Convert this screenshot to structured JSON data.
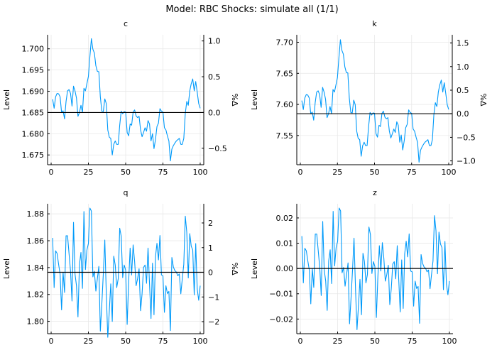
{
  "title": "Model: RBC       Shocks: simulate all  (1/1)",
  "colors": {
    "series": "#009AFA",
    "steady_state": "#000000",
    "grid": "#e8e8e8"
  },
  "chart_data": [
    {
      "type": "line",
      "title": "c",
      "ylabel": "Level",
      "y2label": "%Δ",
      "xlim": [
        -2.4,
        102.4
      ],
      "ylim": [
        1.6727,
        1.7033
      ],
      "steady_state": 1.685,
      "grid": true,
      "legend": "none",
      "xticks": [
        {
          "v": 0,
          "label": "0"
        },
        {
          "v": 25,
          "label": "25"
        },
        {
          "v": 50,
          "label": "50"
        },
        {
          "v": 75,
          "label": "75"
        },
        {
          "v": 100,
          "label": "100"
        }
      ],
      "yticks": [
        {
          "v": 1.675,
          "label": "1.675"
        },
        {
          "v": 1.68,
          "label": "1.680"
        },
        {
          "v": 1.685,
          "label": "1.685"
        },
        {
          "v": 1.69,
          "label": "1.690"
        },
        {
          "v": 1.695,
          "label": "1.695"
        },
        {
          "v": 1.7,
          "label": "1.700"
        }
      ],
      "y2ticks": [
        {
          "v": -0.5,
          "label": "−0.5"
        },
        {
          "v": 0,
          "label": "0.0"
        },
        {
          "v": 0.5,
          "label": "0.5"
        },
        {
          "v": 1.0,
          "label": "1.0"
        }
      ],
      "x_start": 1,
      "values": [
        1.6881,
        1.686,
        1.6887,
        1.6895,
        1.6894,
        1.6887,
        1.685,
        1.6854,
        1.6835,
        1.6876,
        1.6901,
        1.6904,
        1.6895,
        1.6865,
        1.6912,
        1.6901,
        1.6884,
        1.6841,
        1.685,
        1.6867,
        1.685,
        1.6907,
        1.6901,
        1.6918,
        1.6935,
        1.6982,
        1.7024,
        1.6999,
        1.699,
        1.696,
        1.6947,
        1.6946,
        1.6887,
        1.6853,
        1.6852,
        1.6882,
        1.6871,
        1.6809,
        1.6792,
        1.6789,
        1.675,
        1.6775,
        1.6783,
        1.6775,
        1.6775,
        1.682,
        1.6853,
        1.6847,
        1.6852,
        1.6851,
        1.6803,
        1.6795,
        1.6823,
        1.682,
        1.6851,
        1.6856,
        1.6842,
        1.6838,
        1.6841,
        1.6809,
        1.6793,
        1.6803,
        1.6814,
        1.6806,
        1.6831,
        1.6823,
        1.6783,
        1.68,
        1.6765,
        1.6786,
        1.6817,
        1.6825,
        1.6859,
        1.6853,
        1.6851,
        1.6814,
        1.6809,
        1.6795,
        1.6783,
        1.6736,
        1.6764,
        1.6772,
        1.6778,
        1.6783,
        1.6786,
        1.6789,
        1.6775,
        1.6775,
        1.6789,
        1.6848,
        1.6876,
        1.6867,
        1.6901,
        1.6918,
        1.6929,
        1.6901,
        1.6923,
        1.6898,
        1.6871,
        1.686
      ]
    },
    {
      "type": "line",
      "title": "k",
      "ylabel": "Level",
      "y2label": "%Δ",
      "xlim": [
        -2.4,
        102.4
      ],
      "ylim": [
        7.503,
        7.712
      ],
      "steady_state": 7.585,
      "grid": true,
      "legend": "none",
      "xticks": [
        {
          "v": 0,
          "label": "0"
        },
        {
          "v": 25,
          "label": "25"
        },
        {
          "v": 50,
          "label": "50"
        },
        {
          "v": 75,
          "label": "75"
        },
        {
          "v": 100,
          "label": "100"
        }
      ],
      "yticks": [
        {
          "v": 7.55,
          "label": "7.55"
        },
        {
          "v": 7.6,
          "label": "7.60"
        },
        {
          "v": 7.65,
          "label": "7.65"
        },
        {
          "v": 7.7,
          "label": "7.70"
        }
      ],
      "y2ticks": [
        {
          "v": -1.0,
          "label": "−1.0"
        },
        {
          "v": -0.5,
          "label": "−0.5"
        },
        {
          "v": 0,
          "label": "0.0"
        },
        {
          "v": 0.5,
          "label": "0.5"
        },
        {
          "v": 1.0,
          "label": "1.0"
        },
        {
          "v": 1.5,
          "label": "1.5"
        }
      ],
      "x_start": 1,
      "values": [
        7.6062,
        7.5918,
        7.6103,
        7.6158,
        7.6151,
        7.6103,
        7.585,
        7.5877,
        7.5747,
        7.6028,
        7.6199,
        7.6219,
        7.6158,
        7.5953,
        7.6274,
        7.6199,
        7.6083,
        7.5788,
        7.585,
        7.5966,
        7.585,
        7.624,
        7.6199,
        7.6315,
        7.6432,
        7.6753,
        7.7041,
        7.6869,
        7.6808,
        7.6603,
        7.6514,
        7.6507,
        7.6103,
        7.5871,
        7.5864,
        7.6069,
        7.5994,
        7.5569,
        7.5453,
        7.5433,
        7.5166,
        7.5337,
        7.5392,
        7.5337,
        7.5337,
        7.5645,
        7.5871,
        7.5829,
        7.5864,
        7.5857,
        7.5528,
        7.5474,
        7.5665,
        7.5645,
        7.5857,
        7.5891,
        7.5795,
        7.5768,
        7.5788,
        7.5569,
        7.546,
        7.5528,
        7.5604,
        7.5549,
        7.572,
        7.5665,
        7.5392,
        7.5508,
        7.5268,
        7.5412,
        7.5624,
        7.5679,
        7.5912,
        7.5871,
        7.5857,
        7.5604,
        7.5569,
        7.5474,
        7.5392,
        7.507,
        7.5262,
        7.5316,
        7.5357,
        7.5392,
        7.5412,
        7.5433,
        7.5337,
        7.5337,
        7.5433,
        7.5836,
        7.6028,
        7.5966,
        7.6199,
        7.6315,
        7.6391,
        7.6199,
        7.6349,
        7.6178,
        7.5994,
        7.5918
      ]
    },
    {
      "type": "line",
      "title": "q",
      "ylabel": "Level",
      "y2label": "%Δ",
      "xlim": [
        -2.4,
        102.4
      ],
      "ylim": [
        1.7908,
        1.8875
      ],
      "steady_state": 1.8365,
      "grid": true,
      "legend": "none",
      "xticks": [
        {
          "v": 0,
          "label": "0"
        },
        {
          "v": 25,
          "label": "25"
        },
        {
          "v": 50,
          "label": "50"
        },
        {
          "v": 75,
          "label": "75"
        },
        {
          "v": 100,
          "label": "100"
        }
      ],
      "yticks": [
        {
          "v": 1.8,
          "label": "1.80"
        },
        {
          "v": 1.82,
          "label": "1.82"
        },
        {
          "v": 1.84,
          "label": "1.84"
        },
        {
          "v": 1.86,
          "label": "1.86"
        },
        {
          "v": 1.88,
          "label": "1.88"
        }
      ],
      "y2ticks": [
        {
          "v": -2,
          "label": "−2"
        },
        {
          "v": -1,
          "label": "−1"
        },
        {
          "v": 0,
          "label": "0"
        },
        {
          "v": 1,
          "label": "1"
        },
        {
          "v": 2,
          "label": "2"
        }
      ],
      "x_start": 1,
      "values": [
        1.8621,
        1.8251,
        1.8525,
        1.8505,
        1.8425,
        1.8353,
        1.8085,
        1.8365,
        1.8215,
        1.8637,
        1.8637,
        1.8505,
        1.8373,
        1.8151,
        1.8737,
        1.8353,
        1.8265,
        1.8033,
        1.8425,
        1.8513,
        1.8245,
        1.8817,
        1.8385,
        1.8531,
        1.8579,
        1.8843,
        1.8821,
        1.8331,
        1.8373,
        1.8225,
        1.8317,
        1.8409,
        1.7927,
        1.8129,
        1.8353,
        1.8605,
        1.8205,
        1.7881,
        1.8073,
        1.8279,
        1.7999,
        1.8485,
        1.8419,
        1.8251,
        1.8317,
        1.8693,
        1.8635,
        1.8325,
        1.8419,
        1.8381,
        1.7977,
        1.8297,
        1.8545,
        1.8345,
        1.8569,
        1.8447,
        1.8265,
        1.8317,
        1.8391,
        1.8079,
        1.8205,
        1.8401,
        1.8419,
        1.8283,
        1.8545,
        1.8279,
        1.8021,
        1.8433,
        1.8049,
        1.8481,
        1.8581,
        1.8457,
        1.8639,
        1.8345,
        1.8339,
        1.8067,
        1.8265,
        1.8207,
        1.8223,
        1.7931,
        1.8475,
        1.8405,
        1.8377,
        1.8367,
        1.8339,
        1.8353,
        1.8205,
        1.8317,
        1.8425,
        1.8783,
        1.8663,
        1.8323,
        1.8653,
        1.8559,
        1.8531,
        1.8197,
        1.8579,
        1.8241,
        1.8157,
        1.8265
      ]
    },
    {
      "type": "line",
      "title": "z",
      "ylabel": "Level",
      "xlim": [
        -2.4,
        102.4
      ],
      "ylim": [
        -0.0258,
        0.0256
      ],
      "steady_state": 0.0,
      "grid": true,
      "legend": "none",
      "xticks": [
        {
          "v": 0,
          "label": "0"
        },
        {
          "v": 25,
          "label": "25"
        },
        {
          "v": 50,
          "label": "50"
        },
        {
          "v": 75,
          "label": "75"
        },
        {
          "v": 100,
          "label": "100"
        }
      ],
      "yticks": [
        {
          "v": -0.02,
          "label": "−0.02"
        },
        {
          "v": -0.01,
          "label": "−0.01"
        },
        {
          "v": 0,
          "label": "0.00"
        },
        {
          "v": 0.01,
          "label": "0.01"
        },
        {
          "v": 0.02,
          "label": "0.02"
        }
      ],
      "x_start": 1,
      "values": [
        0.0128,
        -0.0057,
        0.008,
        0.007,
        0.003,
        -0.0006,
        -0.014,
        0,
        -0.0075,
        0.0136,
        0.0136,
        0.007,
        0.0004,
        -0.0107,
        0.0186,
        -0.0006,
        -0.005,
        -0.0166,
        0.003,
        0.0074,
        -0.006,
        0.0226,
        0.001,
        0.0083,
        0.0107,
        0.0239,
        0.0228,
        -0.0017,
        0.0004,
        -0.007,
        -0.0024,
        0.0022,
        -0.0219,
        -0.0118,
        -0.0006,
        0.012,
        -0.008,
        -0.0242,
        -0.0146,
        -0.0043,
        -0.0183,
        0.006,
        0.0027,
        -0.0057,
        -0.0024,
        0.0164,
        0.0135,
        -0.002,
        0.0027,
        0.0008,
        -0.0194,
        -0.0034,
        0.009,
        -0.001,
        0.0102,
        0.0041,
        -0.005,
        -0.0024,
        0.0013,
        -0.0143,
        -0.008,
        0.0018,
        0.0027,
        -0.0041,
        0.009,
        -0.0043,
        -0.0172,
        0.0034,
        -0.0158,
        0.0058,
        0.0108,
        0.0046,
        0.0137,
        -0.001,
        -0.0013,
        -0.0149,
        -0.005,
        -0.0079,
        -0.0071,
        -0.0217,
        0.0055,
        0.002,
        0.0006,
        0.0001,
        -0.0013,
        -0.0006,
        -0.008,
        -0.0024,
        0.003,
        0.0209,
        0.0149,
        -0.0021,
        0.0144,
        0.0097,
        0.0083,
        -0.0084,
        0.0107,
        -0.0062,
        -0.0104,
        -0.005
      ]
    }
  ]
}
